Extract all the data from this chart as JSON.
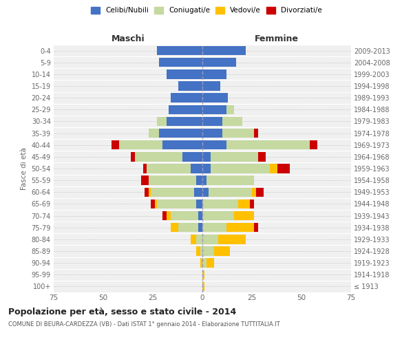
{
  "age_groups": [
    "100+",
    "95-99",
    "90-94",
    "85-89",
    "80-84",
    "75-79",
    "70-74",
    "65-69",
    "60-64",
    "55-59",
    "50-54",
    "45-49",
    "40-44",
    "35-39",
    "30-34",
    "25-29",
    "20-24",
    "15-19",
    "10-14",
    "5-9",
    "0-4"
  ],
  "birth_years": [
    "≤ 1913",
    "1914-1918",
    "1919-1923",
    "1924-1928",
    "1929-1933",
    "1934-1938",
    "1939-1943",
    "1944-1948",
    "1949-1953",
    "1954-1958",
    "1959-1963",
    "1964-1968",
    "1969-1973",
    "1974-1978",
    "1979-1983",
    "1984-1988",
    "1989-1993",
    "1994-1998",
    "1999-2003",
    "2004-2008",
    "2009-2013"
  ],
  "maschi": {
    "celibi": [
      0,
      0,
      0,
      0,
      0,
      2,
      2,
      3,
      4,
      3,
      6,
      10,
      20,
      22,
      18,
      17,
      16,
      12,
      18,
      22,
      23
    ],
    "coniugati": [
      0,
      0,
      0,
      1,
      3,
      10,
      14,
      20,
      22,
      24,
      22,
      24,
      22,
      5,
      5,
      0,
      0,
      0,
      0,
      0,
      0
    ],
    "vedovi": [
      0,
      0,
      1,
      2,
      3,
      4,
      2,
      1,
      1,
      0,
      0,
      0,
      0,
      0,
      0,
      0,
      0,
      0,
      0,
      0,
      0
    ],
    "divorziati": [
      0,
      0,
      0,
      0,
      0,
      0,
      2,
      2,
      2,
      4,
      2,
      2,
      4,
      0,
      0,
      0,
      0,
      0,
      0,
      0,
      0
    ]
  },
  "femmine": {
    "nubili": [
      0,
      0,
      0,
      0,
      0,
      0,
      0,
      0,
      3,
      2,
      4,
      4,
      12,
      10,
      10,
      12,
      13,
      9,
      12,
      17,
      22
    ],
    "coniugate": [
      0,
      0,
      2,
      6,
      8,
      12,
      16,
      18,
      22,
      24,
      30,
      24,
      42,
      16,
      10,
      4,
      0,
      0,
      0,
      0,
      0
    ],
    "vedove": [
      1,
      1,
      4,
      8,
      14,
      14,
      10,
      6,
      2,
      0,
      4,
      0,
      0,
      0,
      0,
      0,
      0,
      0,
      0,
      0,
      0
    ],
    "divorziate": [
      0,
      0,
      0,
      0,
      0,
      2,
      0,
      2,
      4,
      0,
      6,
      4,
      4,
      2,
      0,
      0,
      0,
      0,
      0,
      0,
      0
    ]
  },
  "colors": {
    "celibi": "#4472c4",
    "coniugati": "#c5d9a0",
    "vedovi": "#ffc000",
    "divorziati": "#cc0000"
  },
  "title": "Popolazione per età, sesso e stato civile - 2014",
  "subtitle": "COMUNE DI BEURA-CARDEZZA (VB) - Dati ISTAT 1° gennaio 2014 - Elaborazione TUTTITALIA.IT",
  "xlabel_maschi": "Maschi",
  "xlabel_femmine": "Femmine",
  "ylabel": "Fasce di età",
  "xlim": 75,
  "bg_color": "#f0f0f0",
  "grid_color": "#cccccc"
}
